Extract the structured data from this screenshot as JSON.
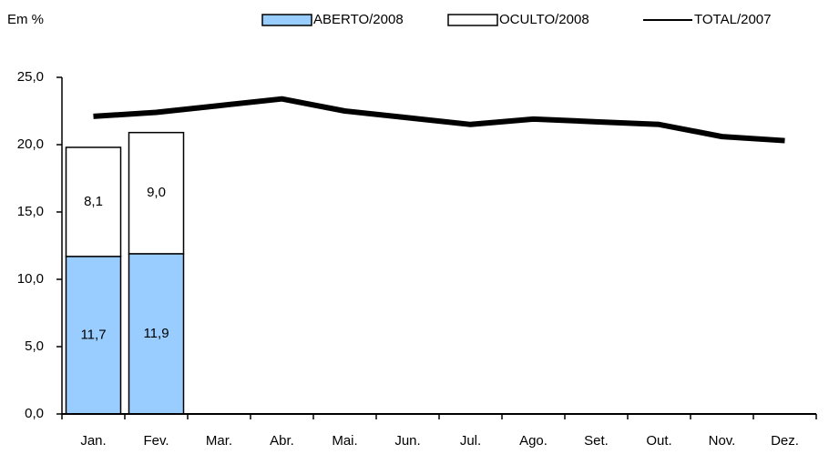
{
  "chart_data": {
    "type": "bar",
    "title": "Em %",
    "categories": [
      "Jan.",
      "Fev.",
      "Mar.",
      "Abr.",
      "Mai.",
      "Jun.",
      "Jul.",
      "Ago.",
      "Set.",
      "Out.",
      "Nov.",
      "Dez."
    ],
    "stacked": true,
    "series": [
      {
        "name": "ABERTO/2008",
        "type": "bar",
        "color": "#99ccff",
        "values": [
          11.7,
          11.9,
          null,
          null,
          null,
          null,
          null,
          null,
          null,
          null,
          null,
          null
        ],
        "value_labels": [
          "11,7",
          "11,9",
          null,
          null,
          null,
          null,
          null,
          null,
          null,
          null,
          null,
          null
        ]
      },
      {
        "name": "OCULTO/2008",
        "type": "bar",
        "color": "#ffffff",
        "values": [
          8.1,
          9.0,
          null,
          null,
          null,
          null,
          null,
          null,
          null,
          null,
          null,
          null
        ],
        "value_labels": [
          "8,1",
          "9,0",
          null,
          null,
          null,
          null,
          null,
          null,
          null,
          null,
          null,
          null
        ]
      },
      {
        "name": "TOTAL/2007",
        "type": "line",
        "color": "#000000",
        "values": [
          22.1,
          22.4,
          22.9,
          23.4,
          22.5,
          22.0,
          21.5,
          21.9,
          21.7,
          21.5,
          20.6,
          20.3
        ]
      }
    ],
    "ylim": [
      0,
      25
    ],
    "yticks": [
      {
        "value": 0,
        "label": "0,0"
      },
      {
        "value": 5,
        "label": "5,0"
      },
      {
        "value": 10,
        "label": "10,0"
      },
      {
        "value": 15,
        "label": "15,0"
      },
      {
        "value": 20,
        "label": "20,0"
      },
      {
        "value": 25,
        "label": "25,0"
      }
    ],
    "grid": false,
    "legend": "top"
  }
}
